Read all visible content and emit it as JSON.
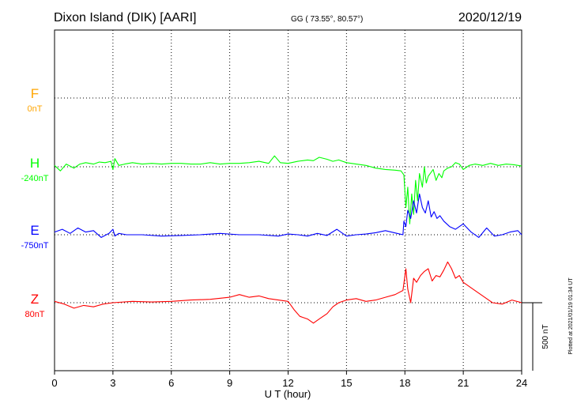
{
  "header": {
    "station": "Dixon Island (DIK)  [AARI]",
    "coords": "GG ( 73.55°,  80.57°)",
    "date": "2020/12/19"
  },
  "plotted_note": "Plotted at 2021/01/19 01:34 UT",
  "chart_data": {
    "type": "line",
    "xlabel": "U T (hour)",
    "xlim": [
      0,
      24
    ],
    "xticks": [
      0,
      3,
      6,
      9,
      12,
      15,
      18,
      21,
      24
    ],
    "scale_bar_label": "500 nT",
    "scale_bar_nT": 500,
    "colors": {
      "F": "#ffa500",
      "H": "#00ff00",
      "E": "#0000ff",
      "Z": "#ff0000"
    },
    "series": [
      {
        "name": "F",
        "baseline_label": "0nT",
        "x": [],
        "values": []
      },
      {
        "name": "H",
        "baseline_label": "-240nT",
        "x": [
          0,
          0.3,
          0.6,
          1.0,
          1.3,
          1.6,
          2.0,
          2.3,
          2.6,
          2.9,
          3.0,
          3.1,
          3.3,
          3.6,
          4.0,
          4.5,
          5.0,
          5.5,
          6.0,
          6.5,
          7.0,
          7.5,
          8.0,
          8.5,
          9.0,
          9.5,
          10.0,
          10.5,
          11.0,
          11.3,
          11.6,
          12.0,
          12.5,
          13.0,
          13.3,
          13.6,
          14.0,
          14.3,
          14.6,
          15.0,
          15.5,
          16.0,
          16.5,
          17.0,
          17.5,
          17.8,
          17.95,
          18.05,
          18.15,
          18.25,
          18.35,
          18.45,
          18.55,
          18.65,
          18.75,
          18.9,
          19.0,
          19.1,
          19.2,
          19.3,
          19.45,
          19.6,
          19.75,
          19.9,
          20.0,
          20.2,
          20.4,
          20.6,
          20.8,
          21.0,
          21.3,
          21.6,
          22.0,
          22.4,
          22.8,
          23.2,
          23.6,
          24.0
        ],
        "values": [
          10,
          -30,
          20,
          -10,
          20,
          30,
          20,
          35,
          30,
          40,
          -20,
          60,
          10,
          20,
          30,
          20,
          25,
          20,
          25,
          25,
          20,
          20,
          30,
          20,
          25,
          25,
          30,
          40,
          25,
          80,
          30,
          25,
          40,
          50,
          45,
          70,
          55,
          40,
          50,
          30,
          20,
          10,
          -10,
          -20,
          -25,
          -30,
          -60,
          -300,
          -150,
          -420,
          -200,
          -350,
          -100,
          -250,
          -50,
          -150,
          0,
          -120,
          -70,
          -50,
          -20,
          -100,
          -50,
          -80,
          -30,
          -10,
          0,
          30,
          20,
          -20,
          10,
          20,
          10,
          25,
          10,
          20,
          15,
          5
        ]
      },
      {
        "name": "E",
        "baseline_label": "-750nT",
        "x": [
          0,
          0.4,
          0.8,
          1.2,
          1.6,
          2.0,
          2.4,
          2.8,
          3.0,
          3.1,
          3.3,
          3.7,
          4.5,
          5.5,
          6.5,
          7.5,
          8.5,
          9.5,
          10.5,
          11.5,
          12.0,
          12.5,
          13.0,
          13.5,
          14.0,
          14.5,
          15.0,
          15.5,
          16.0,
          16.5,
          17.0,
          17.6,
          17.9,
          17.95,
          18.05,
          18.15,
          18.3,
          18.45,
          18.6,
          18.75,
          18.9,
          19.05,
          19.2,
          19.35,
          19.5,
          19.65,
          19.8,
          20.0,
          20.3,
          20.6,
          21.0,
          21.4,
          21.8,
          22.2,
          22.6,
          23.0,
          23.4,
          23.8,
          24.0
        ],
        "values": [
          20,
          40,
          10,
          50,
          20,
          30,
          -20,
          10,
          40,
          -10,
          10,
          0,
          0,
          -10,
          -5,
          0,
          10,
          0,
          0,
          -10,
          5,
          0,
          -10,
          10,
          -5,
          40,
          -10,
          0,
          5,
          15,
          30,
          10,
          0,
          100,
          60,
          180,
          120,
          250,
          160,
          300,
          200,
          160,
          250,
          130,
          170,
          120,
          140,
          100,
          60,
          40,
          80,
          20,
          -20,
          50,
          -10,
          0,
          20,
          30,
          0
        ]
      },
      {
        "name": "Z",
        "baseline_label": "80nT",
        "x": [
          0,
          0.5,
          1.0,
          1.5,
          2.0,
          2.5,
          3.0,
          4.0,
          5.0,
          6.0,
          7.0,
          8.0,
          9.0,
          9.5,
          10.0,
          10.5,
          11.0,
          11.5,
          12.0,
          12.3,
          12.6,
          13.0,
          13.3,
          13.6,
          14.0,
          14.3,
          14.6,
          15.0,
          15.5,
          16.0,
          16.5,
          17.0,
          17.5,
          17.9,
          18.05,
          18.15,
          18.3,
          18.45,
          18.6,
          18.8,
          19.0,
          19.2,
          19.4,
          19.6,
          19.8,
          20.0,
          20.2,
          20.4,
          20.6,
          20.8,
          21.0,
          21.5,
          22.0,
          22.5,
          23.0,
          23.5,
          24.0
        ],
        "values": [
          10,
          -10,
          -40,
          -20,
          -30,
          -10,
          0,
          10,
          5,
          10,
          20,
          25,
          40,
          60,
          40,
          50,
          30,
          20,
          10,
          -50,
          -100,
          -120,
          -150,
          -120,
          -80,
          -30,
          0,
          20,
          30,
          10,
          20,
          40,
          60,
          90,
          250,
          100,
          0,
          180,
          150,
          200,
          230,
          250,
          160,
          200,
          190,
          240,
          300,
          250,
          180,
          200,
          150,
          100,
          50,
          0,
          -10,
          20,
          0
        ]
      },
      {
        "name": "baseline",
        "values": []
      }
    ]
  }
}
